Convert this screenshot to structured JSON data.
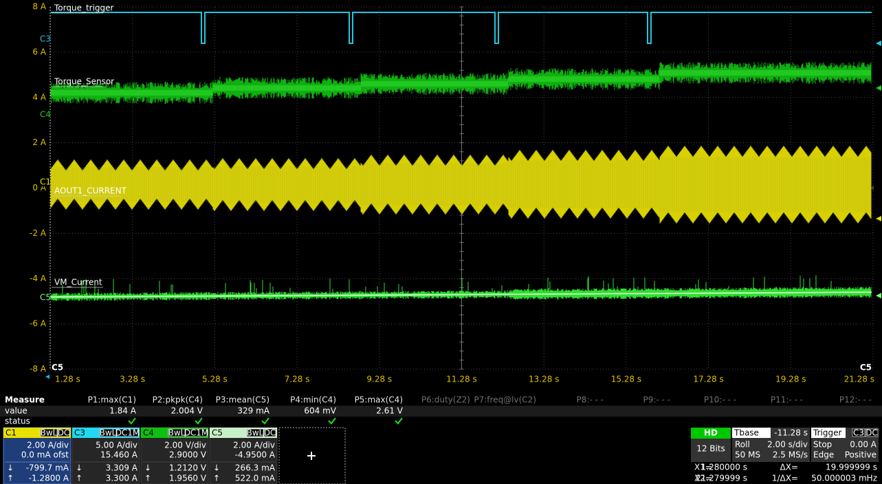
{
  "y_axis_labels": [
    "8 A",
    "6 A",
    "4 A",
    "2 A",
    "0 A",
    "-2 A",
    "-4 A",
    "-6 A",
    "-8 A"
  ],
  "x_axis_labels": [
    "1.28 s",
    "3.28 s",
    "5.28 s",
    "7.28 s",
    "9.28 s",
    "11.28 s",
    "13.28 s",
    "15.28 s",
    "17.28 s",
    "19.28 s",
    "21.28 s"
  ],
  "trace_labels": [
    "Torque_trigger",
    "Torque_Sensor",
    "AOUT1_CURRENT",
    "VM_Current"
  ],
  "channel_markers": [
    "C3",
    "C4",
    "C1",
    "C5"
  ],
  "corner_markers": [
    "C5",
    "C5"
  ],
  "measure": {
    "title": "Measure",
    "headers": [
      "P1:max(C1)",
      "P2:pkpk(C4)",
      "P3:mean(C5)",
      "P4:min(C4)",
      "P5:max(C4)",
      "P6:duty(Z2)",
      "P7:freq@lv(C2)",
      "P8:- - -",
      "P9:- - -",
      "P10:- - -",
      "P11:- - -",
      "P12:- - -"
    ],
    "row_labels": [
      "value",
      "status"
    ],
    "values": [
      "1.84 A",
      "2.004 V",
      "329 mA",
      "604 mV",
      "2.61 V"
    ]
  },
  "cursor_arrows": [
    "↓",
    "↑"
  ],
  "channels": [
    {
      "name": "C1",
      "tags": [
        "BwL",
        "DC"
      ],
      "lines": [
        "2.00 A/div",
        "0.0 mA ofst",
        "-799.7 mA",
        "-1.2800 A"
      ]
    },
    {
      "name": "C3",
      "tags": [
        "BwL",
        "DC1M"
      ],
      "lines": [
        "5.00 A/div",
        "15.460 A",
        "3.309 A",
        "3.300 A"
      ]
    },
    {
      "name": "C4",
      "tags": [
        "BwL",
        "DC1M"
      ],
      "lines": [
        "2.00 V/div",
        "2.9000 V",
        "1.2120 V",
        "1.9560 V"
      ]
    },
    {
      "name": "C5",
      "tags": [
        "BwL",
        "DC"
      ],
      "lines": [
        "2.00 A/div",
        "-4.9500 A",
        "266.3 mA",
        "522.0 mA"
      ]
    }
  ],
  "hd": {
    "title": "HD",
    "bits": "12 Bits"
  },
  "tbase": {
    "title": "Tbase",
    "value": "-11.28 s",
    "rows": [
      [
        "Roll",
        "2.00 s/div"
      ],
      [
        "50 MS",
        "2.5 MS/s"
      ]
    ]
  },
  "trigger": {
    "title": "Trigger",
    "tags": [
      "C3",
      "DC"
    ],
    "rows": [
      [
        "Stop",
        "0.00 A"
      ],
      [
        "Edge",
        "Positive"
      ]
    ]
  },
  "cursors": [
    [
      "X1=",
      "1.280000 s",
      "ΔX=",
      "19.999999 s"
    ],
    [
      "X2=",
      "21.279999 s",
      "1/ΔX=",
      "50.000003 mHz"
    ]
  ]
}
